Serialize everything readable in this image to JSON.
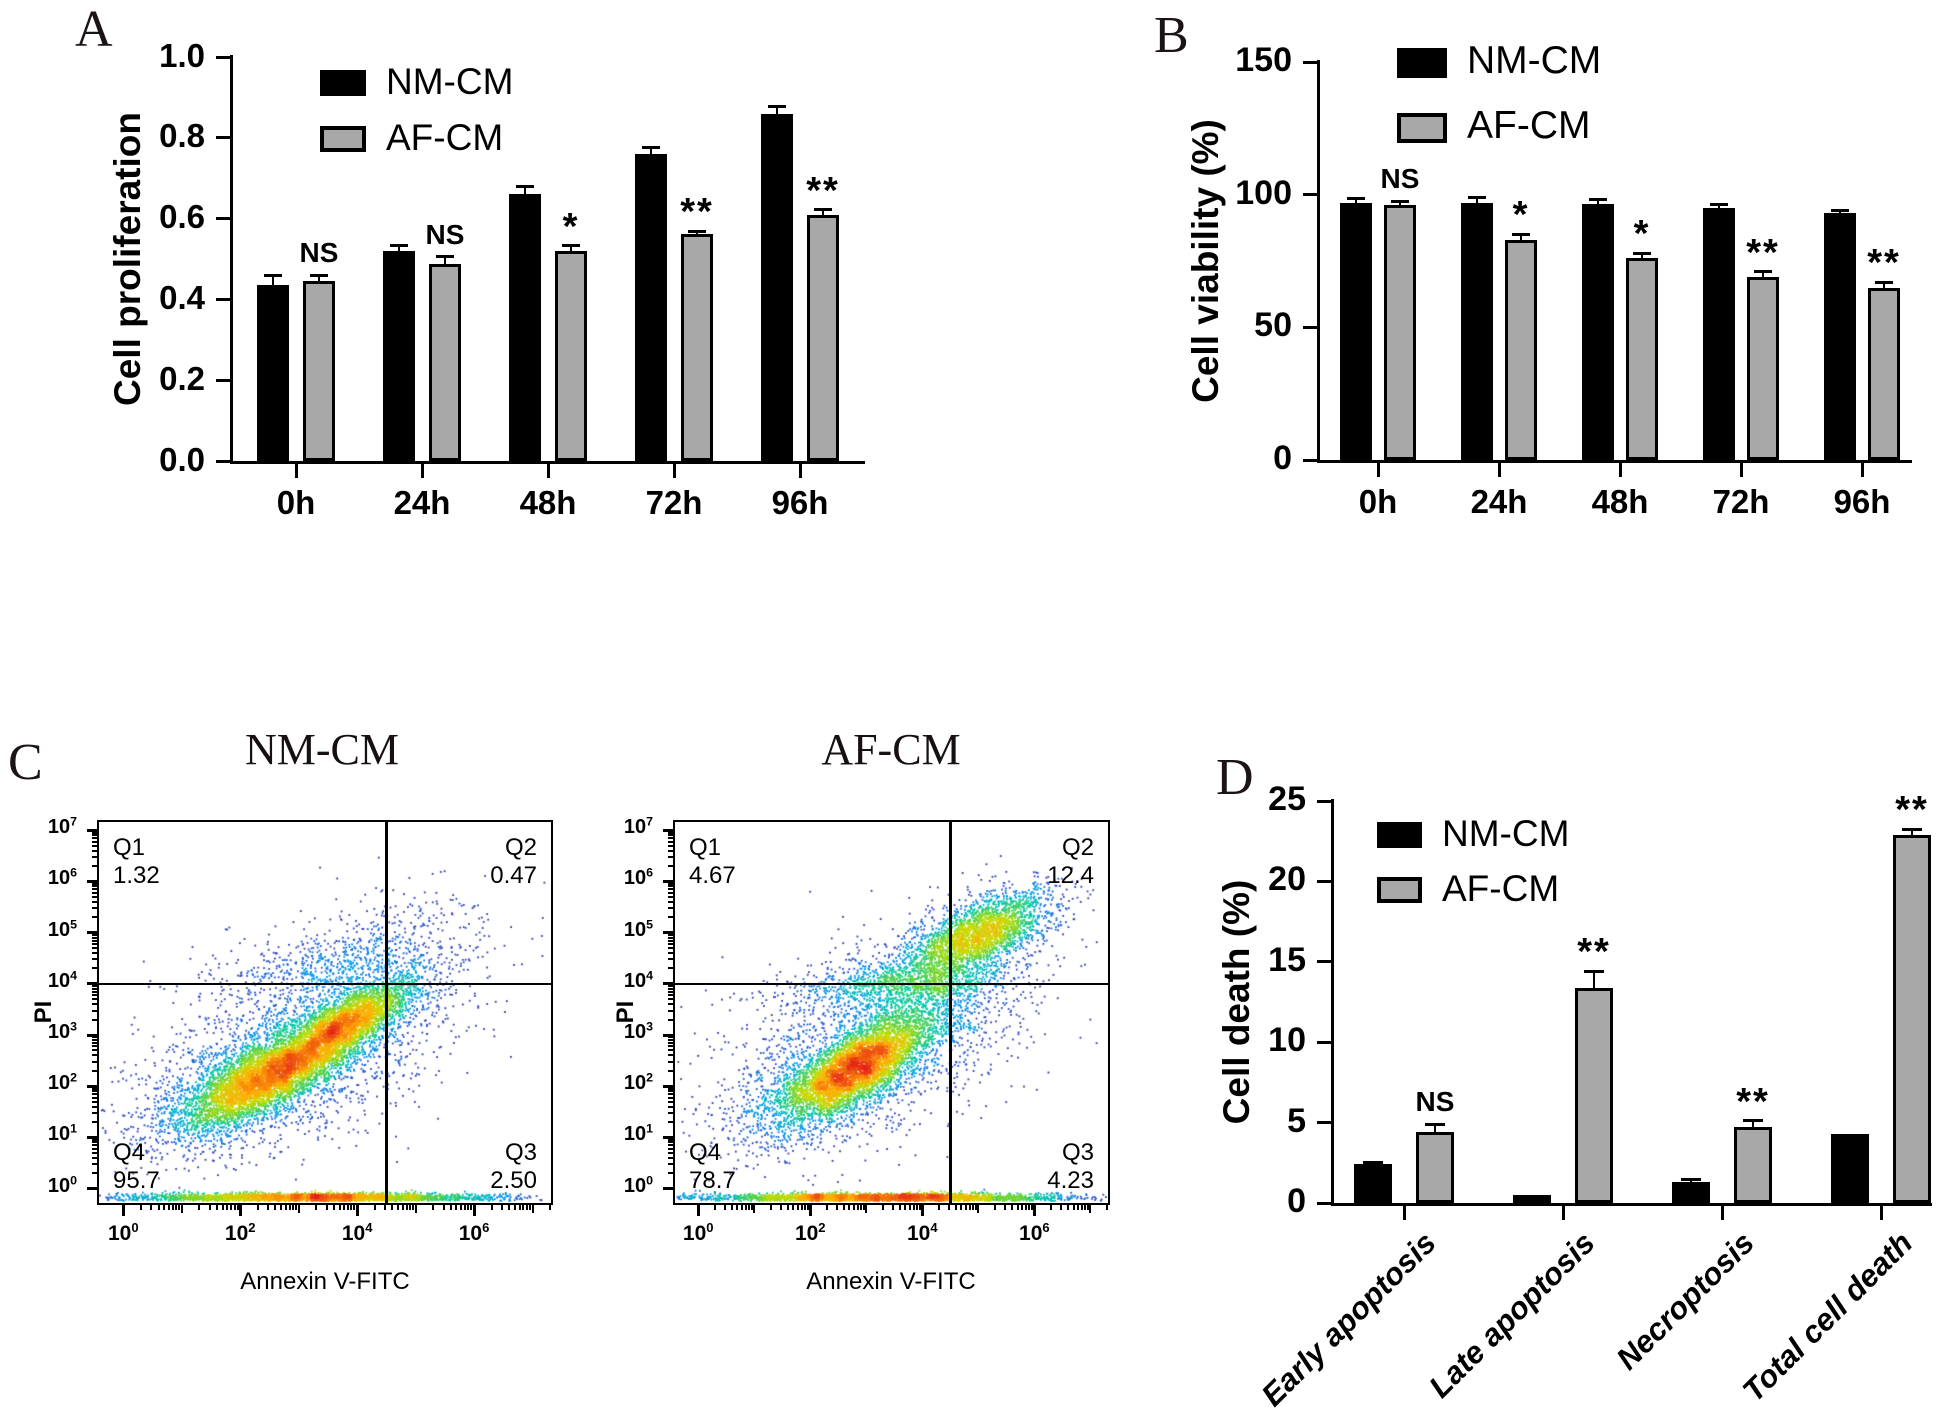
{
  "colors": {
    "nm": "#000000",
    "af": "#a8a8a8",
    "axis": "#000000",
    "background": "#ffffff"
  },
  "panels": {
    "a": {
      "letter": "A"
    },
    "b": {
      "letter": "B"
    },
    "c": {
      "letter": "C"
    },
    "d": {
      "letter": "D"
    }
  },
  "chart_data": [
    {
      "id": "panel-a",
      "type": "bar",
      "title": "",
      "ylabel": "Cell proliferation",
      "xlabel": "",
      "categories": [
        "0h",
        "24h",
        "48h",
        "72h",
        "96h"
      ],
      "series": [
        {
          "name": "NM-CM",
          "color": "#000000",
          "values": [
            0.435,
            0.52,
            0.66,
            0.76,
            0.86
          ],
          "errors": [
            0.025,
            0.013,
            0.02,
            0.016,
            0.018
          ]
        },
        {
          "name": "AF-CM",
          "color": "#a8a8a8",
          "values": [
            0.445,
            0.487,
            0.52,
            0.562,
            0.61
          ],
          "errors": [
            0.015,
            0.018,
            0.013,
            0.007,
            0.012
          ]
        }
      ],
      "significance": [
        "NS",
        "NS",
        "*",
        "**",
        "**"
      ],
      "ylim": [
        0,
        1.0
      ],
      "yticks": [
        0,
        0.2,
        0.4,
        0.6,
        0.8,
        1.0
      ],
      "ytick_labels": [
        "0.0",
        "0.2",
        "0.4",
        "0.6",
        "0.8",
        "1.0"
      ],
      "legend_position": "top-left-inside",
      "grid": false
    },
    {
      "id": "panel-b",
      "type": "bar",
      "title": "",
      "ylabel": "Cell viability (%)",
      "xlabel": "",
      "categories": [
        "0h",
        "24h",
        "48h",
        "72h",
        "96h"
      ],
      "series": [
        {
          "name": "NM-CM",
          "color": "#000000",
          "values": [
            97,
            97,
            96.5,
            95,
            93
          ],
          "errors": [
            1.5,
            2,
            1.5,
            1.2,
            1
          ]
        },
        {
          "name": "AF-CM",
          "color": "#a8a8a8",
          "values": [
            96,
            83,
            76,
            69,
            65
          ],
          "errors": [
            1.5,
            2,
            2,
            2,
            2
          ]
        }
      ],
      "significance": [
        "NS",
        "*",
        "*",
        "**",
        "**"
      ],
      "ylim": [
        0,
        150
      ],
      "yticks": [
        0,
        50,
        100,
        150
      ],
      "ytick_labels": [
        "0",
        "50",
        "100",
        "150"
      ],
      "legend_position": "top-left-inside",
      "grid": false
    },
    {
      "id": "panel-c-nm",
      "type": "flow-density-scatter",
      "title": "NM-CM",
      "xlabel": "Annexin V-FITC",
      "ylabel": "PI",
      "x_scale": "log10",
      "y_scale": "log10",
      "x_decades": [
        -0.45,
        7.35
      ],
      "y_decades": [
        -0.32,
        7.2
      ],
      "x_tick_decades": [
        0,
        2,
        4,
        6
      ],
      "y_tick_decades": [
        0,
        1,
        2,
        3,
        4,
        5,
        6,
        7
      ],
      "gate_x_decade": 4.5,
      "gate_y_decade": 4,
      "quadrants": [
        {
          "name": "Q1",
          "value": "1.32",
          "corner": "top-left"
        },
        {
          "name": "Q2",
          "value": "0.47",
          "corner": "top-right"
        },
        {
          "name": "Q3",
          "value": "2.50",
          "corner": "bottom-right"
        },
        {
          "name": "Q4",
          "value": "95.7",
          "corner": "bottom-left"
        }
      ],
      "clusters": [
        {
          "cx": 2.55,
          "cy": 2.25,
          "sx": 0.85,
          "sy": 0.3,
          "rot": 32,
          "n": 5200
        },
        {
          "cx": 3.9,
          "cy": 3.3,
          "sx": 0.62,
          "sy": 0.24,
          "rot": 34,
          "n": 2600
        },
        {
          "cx": 3.0,
          "cy": 2.75,
          "sx": 1.5,
          "sy": 0.8,
          "rot": 31,
          "n": 2100
        },
        {
          "cx": 3.6,
          "cy": 4.3,
          "sx": 1.0,
          "sy": 0.38,
          "rot": 10,
          "n": 520
        },
        {
          "cx": 4.9,
          "cy": 4.7,
          "sx": 0.65,
          "sy": 0.6,
          "rot": 30,
          "n": 240
        },
        {
          "cx": 1.6,
          "cy": 1.6,
          "sx": 0.7,
          "sy": 0.45,
          "rot": 25,
          "n": 450
        },
        {
          "cx": 3.2,
          "cy": -0.18,
          "sx": 1.5,
          "sy": 0.045,
          "rot": 0,
          "n": 3000
        }
      ]
    },
    {
      "id": "panel-c-af",
      "type": "flow-density-scatter",
      "title": "AF-CM",
      "xlabel": "Annexin V-FITC",
      "ylabel": "PI",
      "x_scale": "log10",
      "y_scale": "log10",
      "x_decades": [
        -0.45,
        7.35
      ],
      "y_decades": [
        -0.32,
        7.2
      ],
      "x_tick_decades": [
        0,
        2,
        4,
        6
      ],
      "y_tick_decades": [
        0,
        1,
        2,
        3,
        4,
        5,
        6,
        7
      ],
      "gate_x_decade": 4.5,
      "gate_y_decade": 4,
      "quadrants": [
        {
          "name": "Q1",
          "value": "4.67",
          "corner": "top-left"
        },
        {
          "name": "Q2",
          "value": "12.4",
          "corner": "top-right"
        },
        {
          "name": "Q3",
          "value": "4.23",
          "corner": "bottom-right"
        },
        {
          "name": "Q4",
          "value": "78.7",
          "corner": "bottom-left"
        }
      ],
      "clusters": [
        {
          "cx": 2.8,
          "cy": 2.35,
          "sx": 0.8,
          "sy": 0.3,
          "rot": 33,
          "n": 4600
        },
        {
          "cx": 5.05,
          "cy": 5.0,
          "sx": 0.7,
          "sy": 0.28,
          "rot": 26,
          "n": 2300
        },
        {
          "cx": 4.25,
          "cy": 4.05,
          "sx": 0.95,
          "sy": 0.5,
          "rot": 43,
          "n": 1300
        },
        {
          "cx": 3.15,
          "cy": 2.85,
          "sx": 1.5,
          "sy": 0.85,
          "rot": 31,
          "n": 1900
        },
        {
          "cx": 3.4,
          "cy": 4.0,
          "sx": 0.95,
          "sy": 0.2,
          "rot": 4,
          "n": 650
        },
        {
          "cx": 1.7,
          "cy": 1.65,
          "sx": 0.7,
          "sy": 0.45,
          "rot": 25,
          "n": 420
        },
        {
          "cx": 3.3,
          "cy": -0.18,
          "sx": 1.6,
          "sy": 0.045,
          "rot": 0,
          "n": 3000
        }
      ]
    },
    {
      "id": "panel-d",
      "type": "bar",
      "title": "",
      "ylabel": "Cell death (%)",
      "xlabel": "",
      "categories": [
        "Early apoptosis",
        "Late apoptosis",
        "Necroptosis",
        "Total cell death"
      ],
      "series": [
        {
          "name": "NM-CM",
          "color": "#000000",
          "values": [
            2.4,
            0.5,
            1.3,
            4.3
          ],
          "errors": [
            0.12,
            0.06,
            0.15,
            0.08
          ]
        },
        {
          "name": "AF-CM",
          "color": "#a8a8a8",
          "values": [
            4.4,
            13.4,
            4.7,
            22.9
          ],
          "errors": [
            0.5,
            1.0,
            0.4,
            0.35
          ]
        }
      ],
      "significance": [
        "NS",
        "**",
        "**",
        "**"
      ],
      "ylim": [
        0,
        25
      ],
      "yticks": [
        0,
        5,
        10,
        15,
        20,
        25
      ],
      "ytick_labels": [
        "0",
        "5",
        "10",
        "15",
        "20",
        "25"
      ],
      "legend_position": "top-left-inside",
      "grid": false
    }
  ]
}
